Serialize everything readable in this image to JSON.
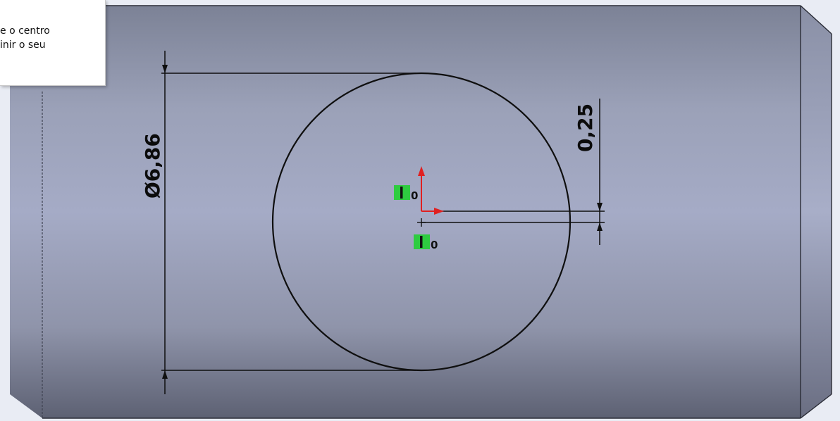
{
  "tooltip": {
    "line1": "e o centro",
    "line2": "inir o seu"
  },
  "dimensions": {
    "diameter": "Ø6,86",
    "offset": "0,25"
  },
  "relations": {
    "badge_top": "0",
    "badge_bottom": "0"
  },
  "colors": {
    "part_light": "#a3a9c4",
    "part_dark": "#5c6072",
    "sketch": "#0f0f0f",
    "relation_badge": "#2ecc40",
    "origin_axis": "#e02020"
  }
}
